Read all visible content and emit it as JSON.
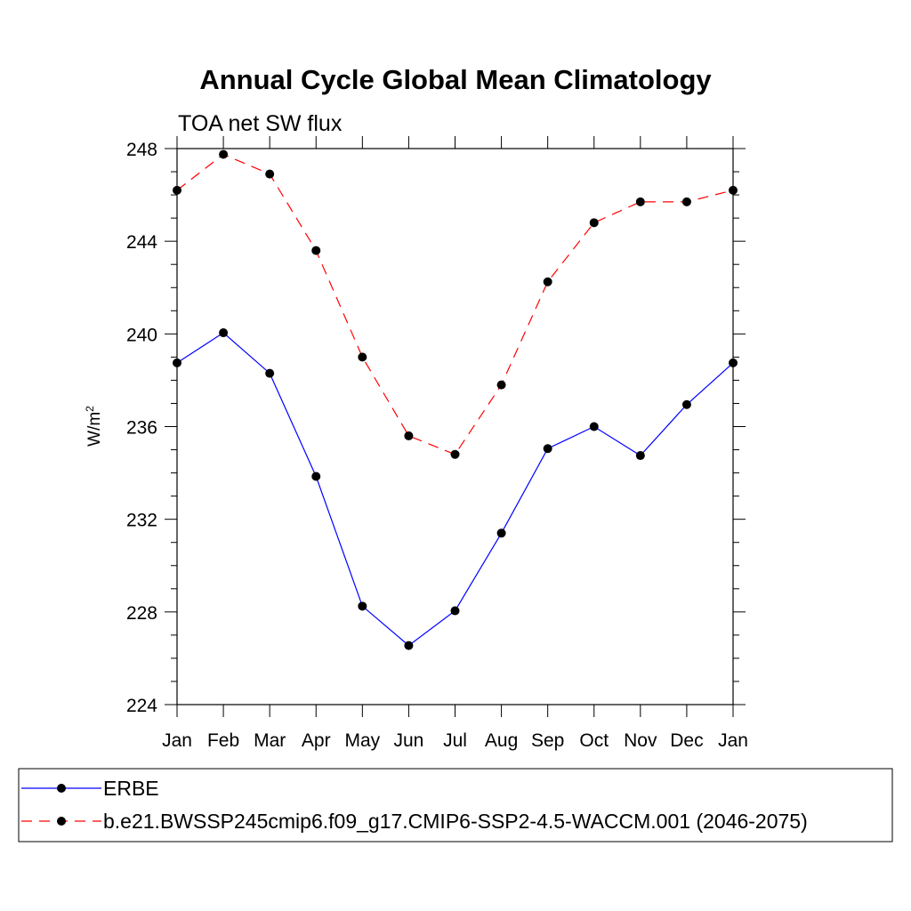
{
  "chart_data": {
    "type": "line",
    "title": "Annual Cycle Global Mean Climatology",
    "subtitle": "TOA net SW flux",
    "xlabel": "",
    "ylabel": "W/m",
    "ylabel_superscript": "2",
    "categories": [
      "Jan",
      "Feb",
      "Mar",
      "Apr",
      "May",
      "Jun",
      "Jul",
      "Aug",
      "Sep",
      "Oct",
      "Nov",
      "Dec",
      "Jan"
    ],
    "ylim": [
      224,
      248
    ],
    "yticks": [
      224,
      228,
      232,
      236,
      240,
      244,
      248
    ],
    "ytick_labels": [
      "224",
      "228",
      "232",
      "236",
      "240",
      "244",
      "248"
    ],
    "grid": false,
    "legend_position": "bottom",
    "series": [
      {
        "name": "ERBE",
        "color": "#0000ff",
        "line_style": "solid",
        "marker": "filled-circle",
        "values": [
          238.75,
          240.05,
          238.3,
          233.85,
          228.25,
          226.55,
          228.05,
          231.4,
          235.05,
          236.0,
          234.75,
          236.95,
          238.75
        ]
      },
      {
        "name": "b.e21.BWSSP245cmip6.f09_g17.CMIP6-SSP2-4.5-WACCM.001 (2046-2075)",
        "color": "#ff0000",
        "line_style": "dashed",
        "marker": "filled-circle",
        "values": [
          246.2,
          247.75,
          246.9,
          243.6,
          239.0,
          235.6,
          234.8,
          237.8,
          242.25,
          244.8,
          245.7,
          245.7,
          246.2
        ]
      }
    ]
  }
}
